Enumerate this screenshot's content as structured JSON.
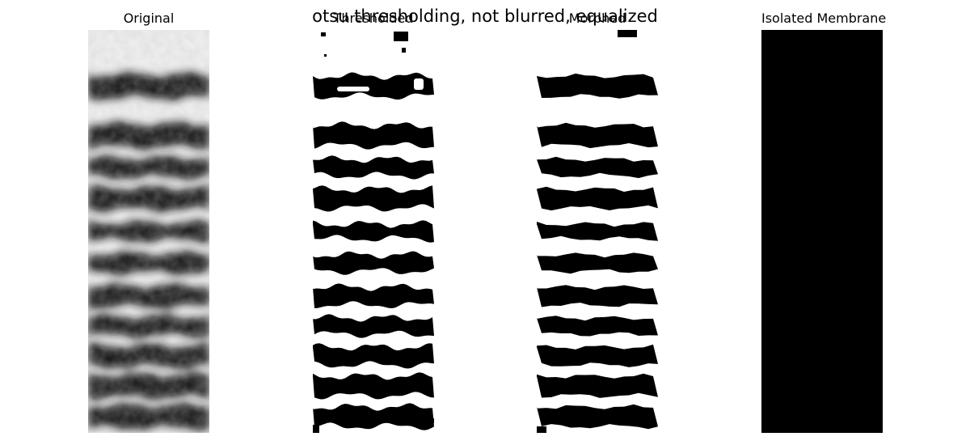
{
  "figure": {
    "suptitle": "otsu thresholding, not blurred, equalized"
  },
  "panels": [
    {
      "title": "Original",
      "kind": "grayscale"
    },
    {
      "title": "Thresholded",
      "kind": "binary-noisy"
    },
    {
      "title": "Morphed",
      "kind": "binary-clean"
    },
    {
      "title": "Isolated Membrane",
      "kind": "masked-grayscale"
    }
  ],
  "colors": {
    "background": "#ffffff",
    "foreground": "#000000",
    "membrane_gray": "#5a5a5a"
  }
}
